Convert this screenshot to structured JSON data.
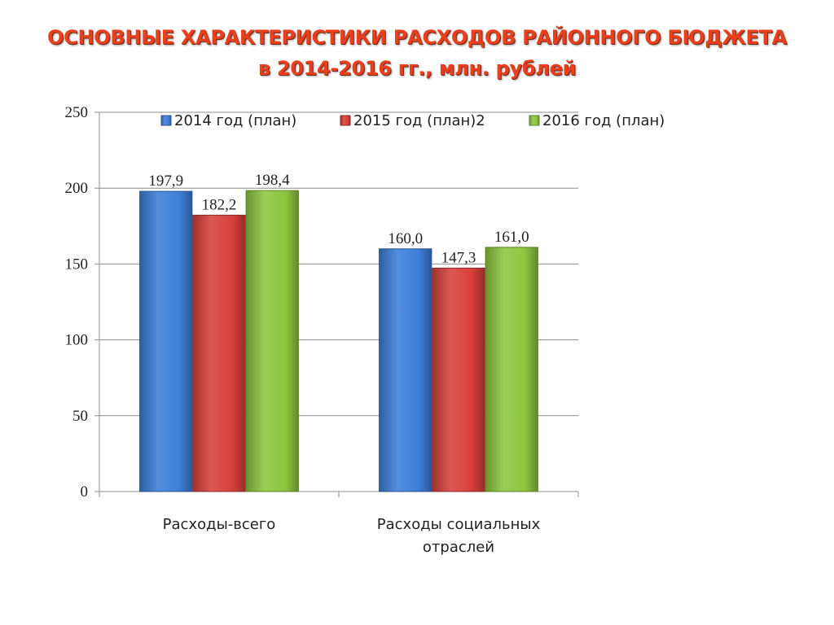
{
  "header": {
    "title_line1": "ОСНОВНЫЕ ХАРАКТЕРИСТИКИ РАСХОДОВ РАЙОННОГО БЮДЖЕТА",
    "title_line2": "в 2014-2016 гг., млн. рублей"
  },
  "chart_data": {
    "type": "bar",
    "title": "ОСНОВНЫЕ ХАРАКТЕРИСТИКИ РАСХОДОВ РАЙОННОГО БЮДЖЕТА в 2014-2016 гг., млн. рублей",
    "categories": [
      [
        "Расходы-всего"
      ],
      [
        "Расходы социальных",
        "отраслей"
      ]
    ],
    "series": [
      {
        "name": "2014 год (план)",
        "values": [
          197.9,
          160.0
        ],
        "labels": [
          "197,9",
          "160,0"
        ],
        "color": "#3d7fd8"
      },
      {
        "name": "2015 год (план)2",
        "values": [
          182.2,
          147.3
        ],
        "labels": [
          "182,2",
          "147,3"
        ],
        "color": "#d8403c"
      },
      {
        "name": "2016 год (план)",
        "values": [
          198.4,
          161.0
        ],
        "labels": [
          "198,4",
          "161,0"
        ],
        "color": "#8dc63f"
      }
    ],
    "ylim": [
      0,
      250
    ],
    "yticks": [
      "0",
      "50",
      "100",
      "150",
      "200",
      "250"
    ],
    "xlabel": "",
    "ylabel": "",
    "grid": true,
    "legend_position": "top"
  }
}
